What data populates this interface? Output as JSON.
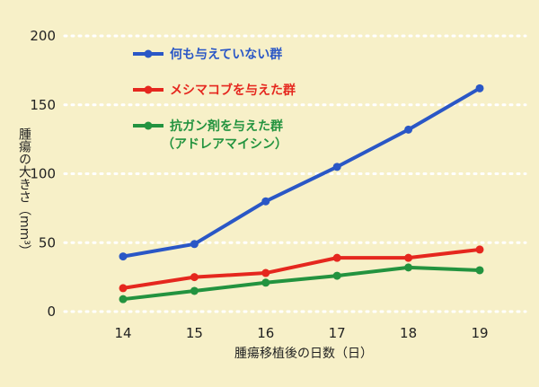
{
  "chart_data": {
    "type": "line",
    "x": [
      14,
      15,
      16,
      17,
      18,
      19
    ],
    "xlabel": "腫瘍移植後の日数（日）",
    "ylabel": "腫瘍の大きさ（mm³）",
    "ylim": [
      0,
      200
    ],
    "yticks": [
      0,
      50,
      100,
      150,
      200
    ],
    "grid": true,
    "legend_position": "top-left",
    "series": [
      {
        "name": "何も与えていない群",
        "color": "#2a57c6",
        "values": [
          40,
          49,
          80,
          105,
          132,
          162
        ]
      },
      {
        "name": "メシマコブを与えた群",
        "color": "#e5271e",
        "values": [
          17,
          25,
          28,
          39,
          39,
          45
        ]
      },
      {
        "name": "抗ガン剤を与えた群",
        "sublabel": "（アドレアマイシン）",
        "color": "#23933f",
        "values": [
          9,
          15,
          21,
          26,
          32,
          30
        ]
      }
    ]
  }
}
